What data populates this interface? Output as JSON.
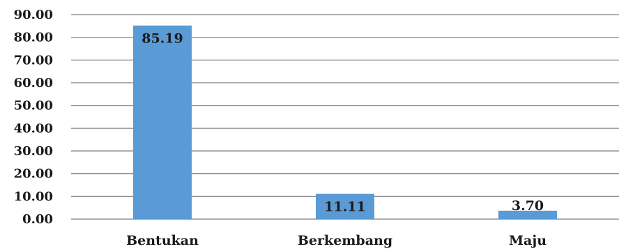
{
  "chart_data": {
    "type": "bar",
    "categories": [
      "Bentukan",
      "Berkembang",
      "Maju"
    ],
    "values": [
      85.19,
      11.11,
      3.7
    ],
    "value_labels": [
      "85.19",
      "11.11",
      "3.70"
    ],
    "title": "",
    "xlabel": "",
    "ylabel": "",
    "ylim": [
      0,
      90
    ],
    "yticks": [
      0,
      10,
      20,
      30,
      40,
      50,
      60,
      70,
      80,
      90
    ],
    "ytick_labels": [
      "0.00",
      "10.00",
      "20.00",
      "30.00",
      "40.00",
      "50.00",
      "60.00",
      "70.00",
      "80.00",
      "90.00"
    ],
    "grid": true,
    "legend": "none",
    "bar_color": "#5b9bd5"
  }
}
